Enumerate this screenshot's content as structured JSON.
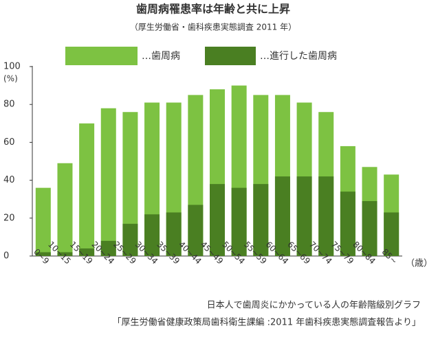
{
  "chart_data": {
    "type": "bar",
    "title": "歯周病罹患率は年齢と共に上昇",
    "subtitle": "（厚生労働省・歯科疾患実態調査 2011 年）",
    "categories": [
      "0~9",
      "10~15",
      "15~19",
      "20~24",
      "25~29",
      "30~34",
      "35~39",
      "40~44",
      "45~49",
      "50~54",
      "55~59",
      "60~64",
      "65~69",
      "70~74",
      "75~79",
      "80~84",
      "85~"
    ],
    "series": [
      {
        "name": "…歯周病",
        "color": "#7dc242",
        "values": [
          36,
          49,
          70,
          78,
          76,
          81,
          81,
          85,
          88,
          90,
          85,
          85,
          81,
          76,
          58,
          47,
          43
        ]
      },
      {
        "name": "…進行した歯周病",
        "color": "#4a7f22",
        "values": [
          2,
          2,
          4,
          8,
          17,
          22,
          23,
          27,
          38,
          36,
          38,
          42,
          42,
          42,
          34,
          29,
          23
        ]
      }
    ],
    "y_label": "(%)",
    "x_label": "（歳）",
    "ylim": [
      0,
      100
    ],
    "yticks": [
      0,
      20,
      40,
      60,
      80,
      100
    ],
    "grid": false,
    "legend": "top",
    "notes": [
      "日本人で歯周炎にかかっている人の年齢階級別グラフ",
      "「厚生労働省健康政策局歯科衛生課編 :2011 年歯科疾患実態調査報告より」"
    ]
  }
}
